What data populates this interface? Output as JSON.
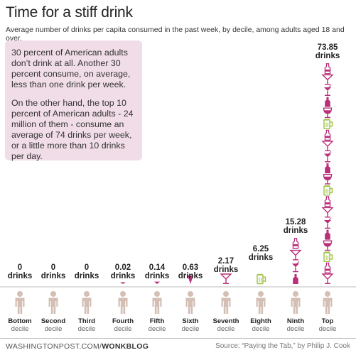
{
  "header": {
    "title": "Time for a stiff drink",
    "subtitle": "Average number of drinks per capita consumed in the past week, by decile, among adults aged 18 and over."
  },
  "note": {
    "paragraphs": [
      "30 percent of American adults don’t drink at all. Another 30 percent consume, on average, less than one drink per week.",
      "On the other hand, the top 10 percent of American adults - 24 million of them - consume an average of 74 drinks per week, or a little more than 10 drinks per day."
    ]
  },
  "chart_data": {
    "type": "bar",
    "unit_label": "drinks",
    "sublabel": "decile",
    "categories": [
      "Bottom",
      "Second",
      "Third",
      "Fourth",
      "Fifth",
      "Sixth",
      "Seventh",
      "Eighth",
      "Ninth",
      "Top"
    ],
    "value_labels": [
      "0",
      "0",
      "0",
      "0.02",
      "0.14",
      "0.63",
      "2.17",
      "6.25",
      "15.28",
      "73.85"
    ],
    "values": [
      0,
      0,
      0,
      0.02,
      0.14,
      0.63,
      2.17,
      6.25,
      15.28,
      73.85
    ],
    "icon_names": [
      "martini-glass-icon",
      "beer-bottle-icon",
      "beer-mug-icon",
      "wine-glass-icon",
      "wine-bottle-icon",
      "cocktail-glass-icon"
    ],
    "colors": {
      "purple": "#b9307a",
      "green": "#9dc341",
      "person": "#d3bfb4",
      "text": "#222222",
      "muted": "#666666"
    }
  },
  "footer": {
    "site": "WASHINGTONPOST.COM/",
    "brand": "WONKBLOG",
    "source": "Source: “Paying the Tab,” by Philip J. Cook"
  }
}
